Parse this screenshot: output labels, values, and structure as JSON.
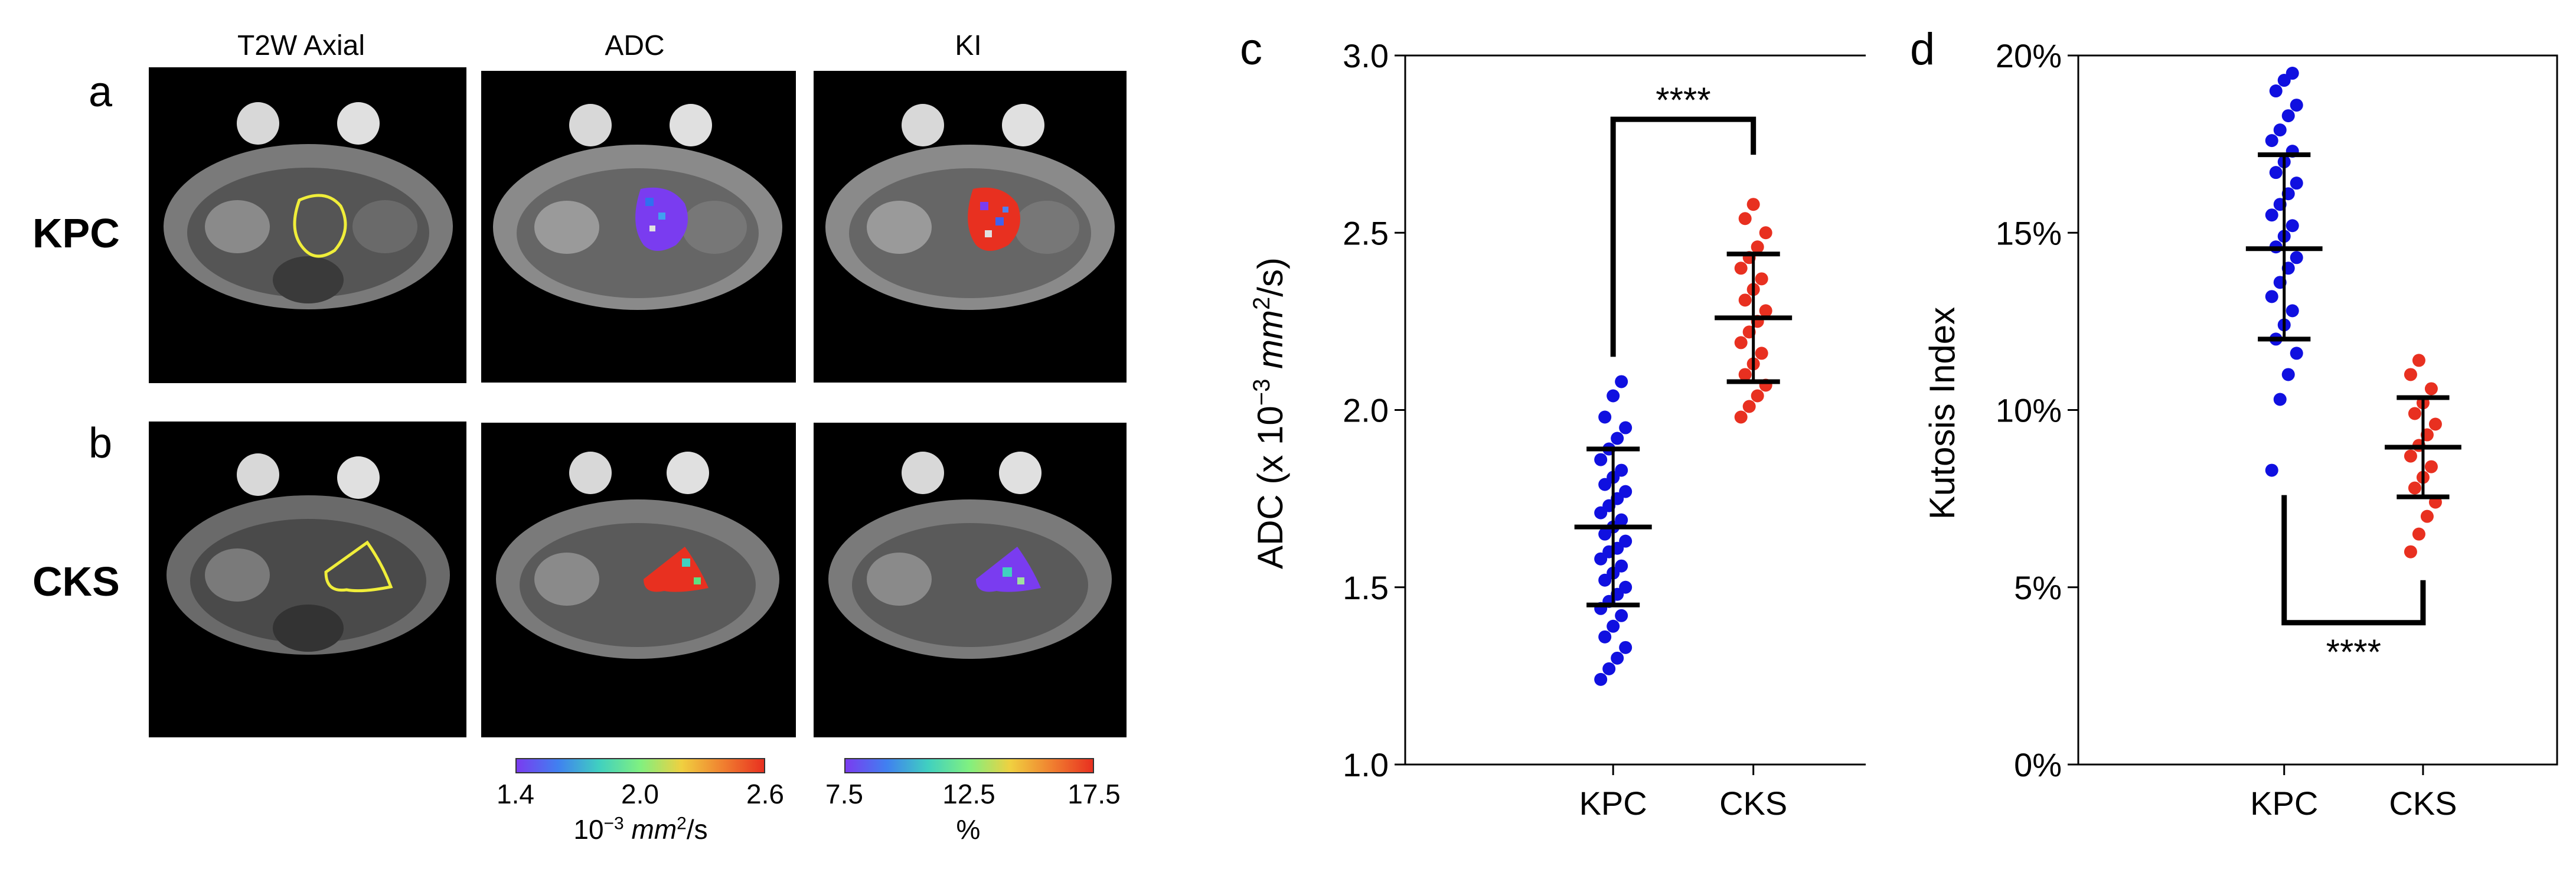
{
  "columns": [
    "T2W Axial",
    "ADC",
    "KI"
  ],
  "rows": [
    {
      "letter": "a",
      "label": "KPC"
    },
    {
      "letter": "b",
      "label": "CKS"
    }
  ],
  "colorbars": [
    {
      "ticks": [
        "1.4",
        "2.0",
        "2.6"
      ],
      "label_prefix": "10",
      "label_exp": "−3",
      "label_unit": "mm",
      "label_unit_exp": "2",
      "label_suffix": "/s"
    },
    {
      "ticks": [
        "7.5",
        "12.5",
        "17.5"
      ],
      "label": "%"
    }
  ],
  "colors": {
    "kpc": "#1010e0",
    "cks": "#e83020",
    "roi": "#f0ee3a"
  },
  "chart_data": [
    {
      "panel": "c",
      "type": "scatter",
      "categories": [
        "KPC",
        "CKS"
      ],
      "ylabel_prefix": "ADC (x 10",
      "ylabel_exp": "−3",
      "ylabel_unit": "mm",
      "ylabel_unit_exp": "2",
      "ylabel_suffix": "/s)",
      "ylim": [
        1.0,
        3.0
      ],
      "yticks": [
        "1.0",
        "1.5",
        "2.0",
        "2.5",
        "3.0"
      ],
      "yticks_values": [
        1.0,
        1.5,
        2.0,
        2.5,
        3.0
      ],
      "significance": "****",
      "series": [
        {
          "name": "KPC",
          "mean": 1.67,
          "sd_low": 1.45,
          "sd_high": 1.89,
          "values": [
            1.24,
            1.27,
            1.3,
            1.33,
            1.36,
            1.39,
            1.42,
            1.44,
            1.46,
            1.48,
            1.5,
            1.52,
            1.54,
            1.56,
            1.58,
            1.6,
            1.61,
            1.63,
            1.65,
            1.67,
            1.69,
            1.71,
            1.73,
            1.75,
            1.77,
            1.79,
            1.81,
            1.83,
            1.86,
            1.89,
            1.92,
            1.95,
            1.98,
            2.04,
            2.08
          ]
        },
        {
          "name": "CKS",
          "mean": 2.26,
          "sd_low": 2.08,
          "sd_high": 2.44,
          "values": [
            1.98,
            2.01,
            2.04,
            2.07,
            2.1,
            2.13,
            2.16,
            2.19,
            2.22,
            2.25,
            2.28,
            2.31,
            2.34,
            2.37,
            2.4,
            2.43,
            2.46,
            2.5,
            2.54,
            2.58
          ]
        }
      ]
    },
    {
      "panel": "d",
      "type": "scatter",
      "categories": [
        "KPC",
        "CKS"
      ],
      "ylabel": "Kutosis Index",
      "ylim": [
        0,
        20
      ],
      "yticks": [
        "0%",
        "5%",
        "10%",
        "15%",
        "20%"
      ],
      "yticks_values": [
        0,
        5,
        10,
        15,
        20
      ],
      "significance": "****",
      "series": [
        {
          "name": "KPC",
          "mean": 14.55,
          "sd_low": 12.0,
          "sd_high": 17.2,
          "values": [
            8.3,
            10.3,
            11.0,
            11.6,
            12.0,
            12.4,
            12.8,
            13.2,
            13.6,
            14.0,
            14.3,
            14.6,
            14.9,
            15.2,
            15.5,
            15.8,
            16.1,
            16.4,
            16.7,
            17.0,
            17.3,
            17.6,
            17.9,
            18.3,
            18.6,
            19.0,
            19.3,
            19.5
          ]
        },
        {
          "name": "CKS",
          "mean": 8.95,
          "sd_low": 7.55,
          "sd_high": 10.35,
          "values": [
            6.0,
            6.5,
            7.0,
            7.4,
            7.8,
            8.1,
            8.4,
            8.7,
            9.0,
            9.3,
            9.6,
            9.9,
            10.2,
            10.6,
            11.0,
            11.4
          ]
        }
      ]
    }
  ]
}
